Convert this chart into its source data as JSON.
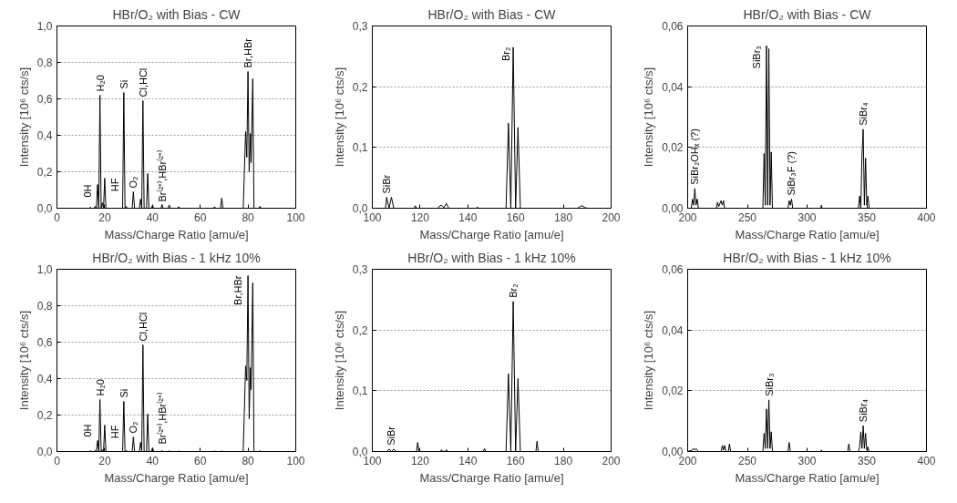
{
  "chart_data": [
    {
      "type": "line",
      "title": "HBr/O₂ with Bias - CW",
      "xlabel": "Mass/Charge Ratio [amu/e]",
      "ylabel": "Intensity [10⁶ cts/s]",
      "color": "#000000",
      "grid": "y",
      "xlim": [
        0,
        100
      ],
      "ylim": [
        0,
        1.0
      ],
      "xticks": [
        0,
        20,
        40,
        60,
        80,
        100
      ],
      "yticks": [
        {
          "value": 0,
          "label": "0,0"
        },
        {
          "value": 0.2,
          "label": "0,2"
        },
        {
          "value": 0.4,
          "label": "0,4"
        },
        {
          "value": 0.6,
          "label": "0,6"
        },
        {
          "value": 0.8,
          "label": "0,8"
        },
        {
          "value": 1.0,
          "label": "1,0"
        }
      ],
      "x": [
        0,
        13.5,
        14,
        14.5,
        15.5,
        16,
        16.5,
        17,
        17.5,
        18,
        18.5,
        19,
        19.5,
        20,
        20.5,
        27.5,
        28,
        28.5,
        29,
        29.5,
        31.5,
        32,
        32.5,
        34.5,
        35,
        35.5,
        36,
        36.5,
        37.5,
        38,
        38.5,
        39.5,
        40,
        40.5,
        43.5,
        44,
        44.5,
        46.5,
        47,
        47.5,
        50.5,
        51,
        51.5,
        65.5,
        66,
        66.5,
        68.5,
        69,
        69.5,
        78,
        79,
        79.5,
        80,
        80.5,
        81,
        81.3,
        82,
        82.5,
        84.5,
        85,
        85.5,
        100
      ],
      "values": [
        0,
        0,
        0.005,
        0,
        0,
        0.01,
        0,
        0.13,
        0,
        0.62,
        0,
        0.03,
        0,
        0.165,
        0,
        0,
        0.635,
        0,
        0.01,
        0,
        0,
        0.09,
        0,
        0,
        0.05,
        0,
        0.59,
        0,
        0,
        0.19,
        0,
        0,
        0.015,
        0,
        0,
        0.02,
        0,
        0,
        0.018,
        0,
        0,
        0.008,
        0,
        0,
        0.008,
        0,
        0,
        0.055,
        0,
        0,
        0.42,
        0.28,
        0.75,
        0.2,
        0.41,
        0.25,
        0.71,
        0,
        0,
        0.01,
        0,
        0
      ],
      "annotations": [
        {
          "text": "0H",
          "x": 17,
          "y": 0.13
        },
        {
          "text": "H₂0",
          "x": 18,
          "y": 0.62
        },
        {
          "text": "HF",
          "x": 20,
          "y": 0.165
        },
        {
          "text": "Si",
          "x": 28,
          "y": 0.635
        },
        {
          "text": "O₂",
          "x": 32,
          "y": 0.09
        },
        {
          "text": "Cl,HCl",
          "x": 36,
          "y": 0.59
        },
        {
          "text": "Br⁽²⁺⁾,HBr⁽²⁺⁾",
          "x": 40,
          "y": 0.015
        },
        {
          "text": "Br,HBr",
          "x": 80,
          "y": 0.75
        }
      ]
    },
    {
      "type": "line",
      "title": "HBr/O₂ with Bias - CW",
      "xlabel": "Mass/Charge Ratio [amu/e]",
      "ylabel": "Intensity [10⁶ cts/s]",
      "color": "#000000",
      "grid": "y",
      "xlim": [
        100,
        200
      ],
      "ylim": [
        0,
        0.3
      ],
      "xticks": [
        100,
        120,
        140,
        160,
        180,
        200
      ],
      "yticks": [
        {
          "value": 0,
          "label": "0,0"
        },
        {
          "value": 0.1,
          "label": "0,1"
        },
        {
          "value": 0.2,
          "label": "0,2"
        },
        {
          "value": 0.3,
          "label": "0,3"
        }
      ],
      "x": [
        100,
        105.5,
        106,
        107,
        108,
        109,
        117.5,
        118,
        118.5,
        127.5,
        128,
        129,
        130,
        131,
        132,
        143.5,
        144,
        144.5,
        156,
        157,
        158,
        159,
        160,
        161,
        162,
        186,
        187,
        188,
        189,
        190,
        200
      ],
      "values": [
        0,
        0,
        0.018,
        0,
        0.018,
        0,
        0,
        0.004,
        0,
        0,
        0.003,
        0.005,
        0.001,
        0.008,
        0,
        0,
        0.002,
        0,
        0,
        0.14,
        0,
        0.265,
        0,
        0.133,
        0,
        0,
        0.003,
        0.004,
        0.001,
        0,
        0
      ],
      "annotations": [
        {
          "text": "SiBr",
          "x": 106,
          "y": 0.018
        },
        {
          "text": "Br₂",
          "x": 160,
          "y": 0.265
        }
      ]
    },
    {
      "type": "line",
      "title": "HBr/O₂ with Bias - CW",
      "xlabel": "Mass/Charge Ratio [amu/e]",
      "ylabel": "Intensity [10⁶ cts/s]",
      "color": "#000000",
      "grid": "y",
      "xlim": [
        200,
        400
      ],
      "ylim": [
        0,
        0.06
      ],
      "xticks": [
        200,
        250,
        300,
        350,
        400
      ],
      "yticks": [
        {
          "value": 0,
          "label": "0,00"
        },
        {
          "value": 0.02,
          "label": "0,02"
        },
        {
          "value": 0.04,
          "label": "0,04"
        },
        {
          "value": 0.06,
          "label": "0,06"
        }
      ],
      "x": [
        200,
        203,
        204,
        205,
        206,
        207,
        208,
        209,
        224,
        225,
        226,
        228,
        229,
        230,
        231,
        263,
        264,
        265,
        266,
        267,
        268,
        269,
        270,
        271,
        284,
        285,
        286,
        287,
        288,
        311.5,
        312,
        312.5,
        343,
        344,
        345,
        346,
        347,
        348,
        349,
        350,
        351,
        352,
        400
      ],
      "values": [
        0,
        0,
        0.003,
        0.001,
        0.0065,
        0.001,
        0.003,
        0,
        0,
        0.002,
        0.0005,
        0.0025,
        0.001,
        0.0025,
        0,
        0,
        0.018,
        0.001,
        0.0535,
        0.001,
        0.0525,
        0.001,
        0.0185,
        0,
        0,
        0.0025,
        0.001,
        0.003,
        0,
        0,
        0.001,
        0,
        0,
        0.004,
        0,
        0.0175,
        0.026,
        0.001,
        0.0165,
        0.001,
        0.004,
        0,
        0
      ],
      "annotations": [
        {
          "text": "SiBr₂OHₓ (?)",
          "x": 206,
          "y": 0.0065
        },
        {
          "text": "SiBr₃",
          "x": 266,
          "y": 0.0535
        },
        {
          "text": "SiBr₃F (?)",
          "x": 287,
          "y": 0.003
        },
        {
          "text": "SiBr₄",
          "x": 347,
          "y": 0.026
        }
      ]
    },
    {
      "type": "line",
      "title": "HBr/O₂ with Bias - 1 kHz 10%",
      "xlabel": "Mass/Charge Ratio [amu/e]",
      "ylabel": "Intensity [10⁶ cts/s]",
      "color": "#000000",
      "grid": "y",
      "xlim": [
        0,
        100
      ],
      "ylim": [
        0,
        1.0
      ],
      "xticks": [
        0,
        20,
        40,
        60,
        80,
        100
      ],
      "yticks": [
        {
          "value": 0,
          "label": "0,0"
        },
        {
          "value": 0.2,
          "label": "0,2"
        },
        {
          "value": 0.4,
          "label": "0,4"
        },
        {
          "value": 0.6,
          "label": "0,6"
        },
        {
          "value": 0.8,
          "label": "0,8"
        },
        {
          "value": 1.0,
          "label": "1,0"
        }
      ],
      "x": [
        0,
        13.5,
        14,
        14.5,
        15.5,
        16,
        16.5,
        17,
        17.5,
        18,
        18.5,
        19,
        19.5,
        20,
        20.5,
        27.5,
        28,
        28.5,
        29,
        29.5,
        31.5,
        32,
        32.5,
        34.5,
        35,
        35.5,
        36,
        36.5,
        37.5,
        38,
        38.5,
        39.5,
        40,
        40.5,
        43.5,
        44,
        44.5,
        46.5,
        47,
        47.5,
        50.5,
        51,
        51.5,
        65.5,
        66,
        66.5,
        68.5,
        69,
        69.5,
        78,
        79,
        79.5,
        80,
        80.5,
        81,
        81.3,
        82,
        82.5,
        84.5,
        85,
        85.5,
        100
      ],
      "values": [
        0,
        0,
        0.003,
        0,
        0,
        0.005,
        0,
        0.06,
        0,
        0.285,
        0,
        0.01,
        0,
        0.145,
        0,
        0,
        0.275,
        0,
        0.005,
        0,
        0,
        0.08,
        0,
        0,
        0.05,
        0,
        0.585,
        0,
        0,
        0.205,
        0,
        0,
        0.02,
        0,
        0,
        0.005,
        0,
        0,
        0.003,
        0,
        0,
        0.002,
        0,
        0,
        0.002,
        0,
        0,
        0.002,
        0,
        0,
        0.47,
        0.39,
        0.965,
        0.18,
        0.46,
        0.34,
        0.925,
        0,
        0,
        0.003,
        0,
        0
      ],
      "annotations": [
        {
          "text": "0H",
          "x": 17,
          "y": 0.06
        },
        {
          "text": "H₂0",
          "x": 18,
          "y": 0.285
        },
        {
          "text": "HF",
          "x": 20,
          "y": 0.145
        },
        {
          "text": "Si",
          "x": 28,
          "y": 0.275
        },
        {
          "text": "O₂",
          "x": 32,
          "y": 0.08
        },
        {
          "text": "Cl,HCl",
          "x": 36,
          "y": 0.585
        },
        {
          "text": "Br⁽²⁺⁾,HBr⁽²⁺⁾",
          "x": 40,
          "y": 0.02
        },
        {
          "text": "Br,HBr",
          "x": 80,
          "y": 0.965
        }
      ]
    },
    {
      "type": "line",
      "title": "HBr/O₂ with Bias - 1 kHz 10%",
      "xlabel": "Mass/Charge Ratio [amu/e]",
      "ylabel": "Intensity [10⁶ cts/s]",
      "color": "#000000",
      "grid": "y",
      "xlim": [
        100,
        200
      ],
      "ylim": [
        0,
        0.3
      ],
      "xticks": [
        100,
        120,
        140,
        160,
        180,
        200
      ],
      "yticks": [
        {
          "value": 0,
          "label": "0,0"
        },
        {
          "value": 0.1,
          "label": "0,1"
        },
        {
          "value": 0.2,
          "label": "0,2"
        },
        {
          "value": 0.3,
          "label": "0,3"
        }
      ],
      "x": [
        100,
        106,
        107,
        108,
        109,
        110,
        118.5,
        119,
        119.5,
        128.5,
        129,
        129.5,
        130.5,
        131,
        131.5,
        146.5,
        147,
        147.5,
        156,
        157,
        158,
        159,
        160,
        161,
        162,
        168.5,
        169,
        169.5,
        200
      ],
      "values": [
        0,
        0,
        0.004,
        0,
        0.004,
        0,
        0,
        0.015,
        0,
        0,
        0.003,
        0,
        0,
        0.003,
        0,
        0,
        0.005,
        0,
        0,
        0.128,
        0,
        0.247,
        0,
        0.12,
        0,
        0,
        0.017,
        0,
        0
      ],
      "annotations": [
        {
          "text": "SiBr",
          "x": 108,
          "y": 0.004
        },
        {
          "text": "Br₂",
          "x": 159,
          "y": 0.247
        }
      ]
    },
    {
      "type": "line",
      "title": "HBr/O₂ with Bias - 1 kHz 10%",
      "xlabel": "Mass/Charge Ratio [amu/e]",
      "ylabel": "Intensity [10⁶ cts/s]",
      "color": "#000000",
      "grid": "y",
      "xlim": [
        200,
        400
      ],
      "ylim": [
        0,
        0.06
      ],
      "xticks": [
        200,
        250,
        300,
        350,
        400
      ],
      "yticks": [
        {
          "value": 0,
          "label": "0,00"
        },
        {
          "value": 0.02,
          "label": "0,02"
        },
        {
          "value": 0.04,
          "label": "0,04"
        },
        {
          "value": 0.06,
          "label": "0,06"
        }
      ],
      "x": [
        200,
        204,
        205,
        206,
        207,
        208,
        209,
        228,
        229,
        230,
        231,
        232,
        234,
        235,
        236,
        263,
        264,
        265,
        266,
        267,
        268,
        269,
        270,
        271,
        284,
        285,
        286,
        311.5,
        312,
        312.5,
        334,
        335,
        336,
        343,
        344,
        345,
        346,
        347,
        348,
        349,
        350,
        351,
        352,
        400
      ],
      "values": [
        0,
        0.0005,
        0.001,
        0.0005,
        0.001,
        0.0005,
        0,
        0,
        0.002,
        0.0005,
        0.002,
        0,
        0,
        0.0025,
        0,
        0,
        0.006,
        0.001,
        0.014,
        0.001,
        0.017,
        0.001,
        0.0065,
        0,
        0,
        0.003,
        0,
        0,
        0.0005,
        0,
        0,
        0.0025,
        0,
        0,
        0.0015,
        0.0065,
        0.001,
        0.0085,
        0.001,
        0.006,
        0.0005,
        0.0015,
        0,
        0
      ],
      "annotations": [
        {
          "text": "SiBr₃",
          "x": 268,
          "y": 0.017
        },
        {
          "text": "SiBr₄",
          "x": 347,
          "y": 0.0085
        }
      ]
    }
  ]
}
